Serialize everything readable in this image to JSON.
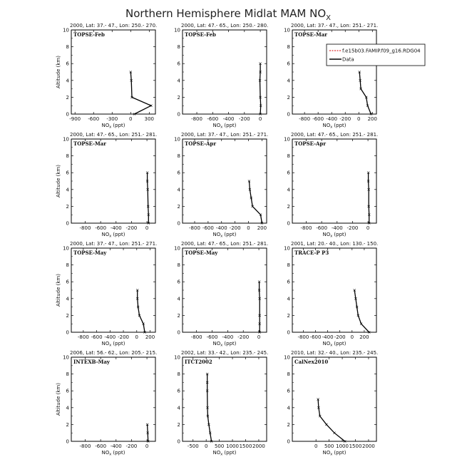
{
  "figure": {
    "title": "Northern Hemisphere Midlat MAM NO",
    "title_sub": "X",
    "xlabel_main": "NO",
    "xlabel_sub": "x",
    "xlabel_unit": " (ppt)",
    "ylabel": "Altitude (km)",
    "legend": [
      {
        "name": "f.e15b03.FAMIP.f09_g16.RDG04",
        "color": "#d40000",
        "dash": true
      },
      {
        "name": "Data",
        "color": "#000000",
        "dash": false
      }
    ]
  },
  "chart_data": [
    {
      "type": "line",
      "header": "2000, Lat: 37.- 47., Lon: 250.- 270.",
      "label": "TOPSE-Feb",
      "xlim": [
        -960,
        400
      ],
      "ylim": [
        0,
        10
      ],
      "xticks": [
        -900,
        -600,
        -300,
        0,
        300
      ],
      "series": [
        {
          "name": "Data",
          "x": [
            60,
            330,
            20,
            10,
            0
          ],
          "y": [
            0,
            1,
            2,
            4,
            5
          ]
        }
      ]
    },
    {
      "type": "line",
      "header": "2000, Lat: 47.- 65., Lon: 250.- 280.",
      "label": "TOPSE-Feb",
      "xlim": [
        -980,
        80
      ],
      "ylim": [
        0,
        10
      ],
      "xticks": [
        -800,
        -600,
        -400,
        -200,
        0
      ],
      "series": [
        {
          "name": "Data",
          "x": [
            0,
            5,
            0,
            -5,
            0,
            0
          ],
          "y": [
            0,
            1,
            2,
            4,
            5,
            6
          ]
        }
      ]
    },
    {
      "type": "line",
      "header": "2000, Lat: 37.- 47., Lon: 251.- 271.",
      "label": "TOPSE-Mar",
      "xlim": [
        -980,
        260
      ],
      "ylim": [
        0,
        10
      ],
      "xticks": [
        -800,
        -600,
        -400,
        -200,
        0,
        200
      ],
      "series": [
        {
          "name": "Data",
          "x": [
            180,
            130,
            110,
            30,
            20,
            10
          ],
          "y": [
            0,
            1,
            2,
            3,
            4,
            5
          ]
        }
      ]
    },
    {
      "type": "line",
      "header": "2000, Lat: 47.- 65., Lon: 251.- 281.",
      "label": "TOPSE-Mar",
      "xlim": [
        -980,
        110
      ],
      "ylim": [
        0,
        10
      ],
      "xticks": [
        -800,
        -600,
        -400,
        -200,
        0
      ],
      "series": [
        {
          "name": "Data",
          "x": [
            20,
            20,
            15,
            10,
            5,
            5
          ],
          "y": [
            0,
            1,
            2,
            4,
            5,
            6
          ]
        }
      ]
    },
    {
      "type": "line",
      "header": "2000, Lat: 37.- 47., Lon: 251.- 271.",
      "label": "TOPSE-Apr",
      "xlim": [
        -980,
        270
      ],
      "ylim": [
        0,
        10
      ],
      "xticks": [
        -800,
        -600,
        -400,
        -200,
        0,
        200
      ],
      "series": [
        {
          "name": "Data",
          "x": [
            200,
            180,
            60,
            40,
            20,
            10
          ],
          "y": [
            0,
            1,
            2,
            3,
            4,
            5
          ]
        }
      ]
    },
    {
      "type": "line",
      "header": "2000, Lat: 47.- 65., Lon: 251.- 281.",
      "label": "TOPSE-Apr",
      "xlim": [
        -980,
        110
      ],
      "ylim": [
        0,
        10
      ],
      "xticks": [
        -800,
        -600,
        -400,
        -200,
        0
      ],
      "series": [
        {
          "name": "Data",
          "x": [
            15,
            15,
            10,
            10,
            5,
            5
          ],
          "y": [
            0,
            1,
            2,
            4,
            5,
            6
          ]
        }
      ]
    },
    {
      "type": "line",
      "header": "2000, Lat: 37.- 47., Lon: 251.- 271.",
      "label": "TOPSE-May",
      "xlim": [
        -980,
        280
      ],
      "ylim": [
        0,
        10
      ],
      "xticks": [
        -800,
        -600,
        -400,
        -200,
        0,
        200
      ],
      "series": [
        {
          "name": "Data",
          "x": [
            120,
            100,
            40,
            20,
            10,
            10
          ],
          "y": [
            0,
            1,
            2,
            3,
            4,
            5
          ]
        }
      ]
    },
    {
      "type": "line",
      "header": "2000, Lat: 47.- 65., Lon: 251.- 281.",
      "label": "TOPSE-May",
      "xlim": [
        -980,
        100
      ],
      "ylim": [
        0,
        10
      ],
      "xticks": [
        -800,
        -600,
        -400,
        -200,
        0
      ],
      "series": [
        {
          "name": "Data",
          "x": [
            10,
            10,
            10,
            10,
            5,
            5
          ],
          "y": [
            0,
            1,
            2,
            4,
            5,
            6
          ]
        }
      ]
    },
    {
      "type": "line",
      "header": "2001, Lat: 20.- 40., Lon: 130.- 150.",
      "label": "TRACE-P P3",
      "xlim": [
        -980,
        400
      ],
      "ylim": [
        0,
        10
      ],
      "xticks": [
        -800,
        -600,
        -400,
        -200,
        0,
        200
      ],
      "series": [
        {
          "name": "Data",
          "x": [
            280,
            150,
            100,
            80,
            60,
            40
          ],
          "y": [
            0,
            1,
            2,
            3,
            4,
            5
          ]
        }
      ]
    },
    {
      "type": "line",
      "header": "2006, Lat: 56.- 62., Lon: 205.- 215.",
      "label": "INTEXB-May",
      "xlim": [
        -980,
        110
      ],
      "ylim": [
        0,
        10
      ],
      "xticks": [
        -800,
        -600,
        -400,
        -200,
        0
      ],
      "series": [
        {
          "name": "Data",
          "x": [
            15,
            10,
            5
          ],
          "y": [
            0,
            1,
            2
          ]
        }
      ]
    },
    {
      "type": "line",
      "header": "2002, Lat: 33.- 42., Lon: 235.- 245.",
      "label": "ITCT2002",
      "xlim": [
        -900,
        2300
      ],
      "ylim": [
        0,
        10
      ],
      "xticks": [
        -500,
        0,
        500,
        1000,
        1500,
        2000
      ],
      "series": [
        {
          "name": "Data",
          "x": [
            200,
            150,
            100,
            60,
            50,
            40,
            40,
            40
          ],
          "y": [
            0,
            1,
            2,
            3,
            4,
            6,
            7,
            8
          ]
        }
      ]
    },
    {
      "type": "line",
      "header": "2010, Lat: 32.- 40., Lon: 235.- 245.",
      "label": "CalNex2010",
      "xlim": [
        -900,
        2300
      ],
      "ylim": [
        0,
        10
      ],
      "xticks": [
        0,
        500,
        1000,
        1500,
        2000
      ],
      "series": [
        {
          "name": "Data",
          "x": [
            1100,
            700,
            400,
            150,
            100,
            80
          ],
          "y": [
            0,
            1,
            2,
            3,
            4,
            5
          ]
        }
      ]
    }
  ]
}
